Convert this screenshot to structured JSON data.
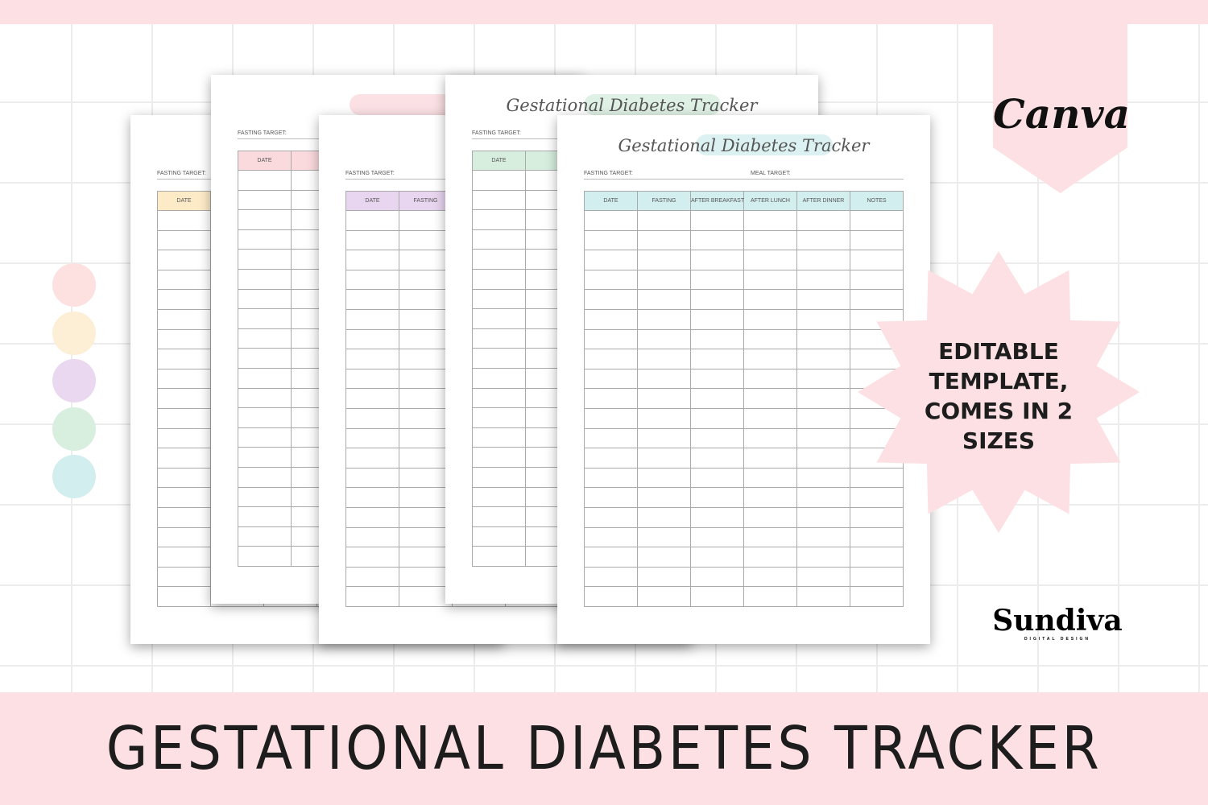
{
  "banner_title": "GESTATIONAL DIABETES TRACKER",
  "canva_label": "Canva",
  "badge_text": "EDITABLE TEMPLATE, COMES IN 2 SIZES",
  "brand": {
    "name": "Sundiva",
    "tagline": "DIGITAL DESIGN"
  },
  "swatches": [
    "#fde0e0",
    "#fdefd6",
    "#ead8f0",
    "#d8efe0",
    "#d3eeee"
  ],
  "template": {
    "title": "Gestational Diabetes Tracker",
    "fasting_label": "FASTING TARGET:",
    "meal_label": "MEAL TARGET:",
    "columns": [
      "DATE",
      "FASTING",
      "AFTER BREAKFAST",
      "AFTER LUNCH",
      "AFTER DINNER",
      "NOTES"
    ]
  },
  "pages": [
    {
      "accent": "#fdebc8"
    },
    {
      "accent": "#fadadd"
    },
    {
      "accent": "#e8d5ef"
    },
    {
      "accent": "#d7eedf"
    },
    {
      "accent": "#d3eeee"
    }
  ]
}
